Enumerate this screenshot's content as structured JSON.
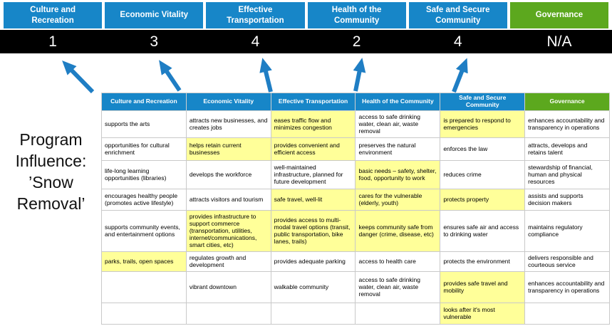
{
  "title": "Program Influence: ’Snow Removal’",
  "colors": {
    "blue": "#1786C8",
    "green": "#5CA81E",
    "highlight": "#FFFF99",
    "score_band_bg": "#000000",
    "arrow": "#1F7EC4"
  },
  "categories": [
    {
      "label": "Culture and Recreation",
      "score": "1",
      "theme": "blue"
    },
    {
      "label": "Economic Vitality",
      "score": "3",
      "theme": "blue"
    },
    {
      "label": "Effective Transportation",
      "score": "4",
      "theme": "blue"
    },
    {
      "label": "Health of the Community",
      "score": "2",
      "theme": "blue"
    },
    {
      "label": "Safe and Secure Community",
      "score": "4",
      "theme": "blue"
    },
    {
      "label": "Governance",
      "score": "N/A",
      "theme": "green"
    }
  ],
  "table": {
    "rows": [
      [
        {
          "t": "supports the arts",
          "hl": false
        },
        {
          "t": "attracts new businesses, and creates jobs",
          "hl": false
        },
        {
          "t": "eases traffic flow and minimizes congestion",
          "hl": true
        },
        {
          "t": "access to safe drinking water, clean air, waste removal",
          "hl": false
        },
        {
          "t": "is prepared to respond to emergencies",
          "hl": true
        },
        {
          "t": "enhances accountability and transparency in operations",
          "hl": false
        }
      ],
      [
        {
          "t": "opportunities for cultural enrichment",
          "hl": false
        },
        {
          "t": "helps retain current businesses",
          "hl": true
        },
        {
          "t": "provides convenient and efficient access",
          "hl": true
        },
        {
          "t": "preserves the natural environment",
          "hl": false
        },
        {
          "t": "enforces the law",
          "hl": false
        },
        {
          "t": "attracts, develops and retains talent",
          "hl": false
        }
      ],
      [
        {
          "t": "life-long learning opportunities (libraries)",
          "hl": false
        },
        {
          "t": "develops the workforce",
          "hl": false
        },
        {
          "t": "well-maintained infrastructure, planned for future development",
          "hl": false
        },
        {
          "t": "basic needs – safety, shelter, food, opportunity to work",
          "hl": true
        },
        {
          "t": "reduces crime",
          "hl": false
        },
        {
          "t": "stewardship of financial, human and physical resources",
          "hl": false
        }
      ],
      [
        {
          "t": "encourages healthy people (promotes active lifestyle)",
          "hl": false
        },
        {
          "t": "attracts visitors and tourism",
          "hl": false
        },
        {
          "t": "safe travel, well-lit",
          "hl": true
        },
        {
          "t": "cares for the vulnerable (elderly, youth)",
          "hl": true
        },
        {
          "t": "protects property",
          "hl": true
        },
        {
          "t": "assists and supports decision makers",
          "hl": false
        }
      ],
      [
        {
          "t": "supports community events, and entertainment options",
          "hl": false
        },
        {
          "t": "provides infrastructure to support commerce (transportation, utilities, internet/communications, smart cities, etc)",
          "hl": true
        },
        {
          "t": "provides access to multi-modal travel options (transit, public transportation, bike lanes, trails)",
          "hl": true
        },
        {
          "t": "keeps community safe from danger (crime, disease, etc)",
          "hl": true
        },
        {
          "t": "ensures safe air and access to drinking water",
          "hl": false
        },
        {
          "t": "maintains regulatory compliance",
          "hl": false
        }
      ],
      [
        {
          "t": "parks, trails, open spaces",
          "hl": true
        },
        {
          "t": "regulates growth and development",
          "hl": false
        },
        {
          "t": "provides adequate parking",
          "hl": false
        },
        {
          "t": "access to health care",
          "hl": false
        },
        {
          "t": "protects the environment",
          "hl": false
        },
        {
          "t": "delivers responsible and courteous service",
          "hl": false
        }
      ],
      [
        {
          "t": "",
          "hl": false
        },
        {
          "t": "vibrant downtown",
          "hl": false
        },
        {
          "t": "walkable community",
          "hl": false
        },
        {
          "t": "access to safe drinking water, clean air, waste removal",
          "hl": false
        },
        {
          "t": "provides safe travel and mobility",
          "hl": true
        },
        {
          "t": "enhances accountability and transparency in operations",
          "hl": false
        }
      ],
      [
        {
          "t": "",
          "hl": false
        },
        {
          "t": "",
          "hl": false
        },
        {
          "t": "",
          "hl": false
        },
        {
          "t": "",
          "hl": false
        },
        {
          "t": "looks after it's most vulnerable",
          "hl": true
        },
        {
          "t": "",
          "hl": false
        }
      ]
    ]
  }
}
